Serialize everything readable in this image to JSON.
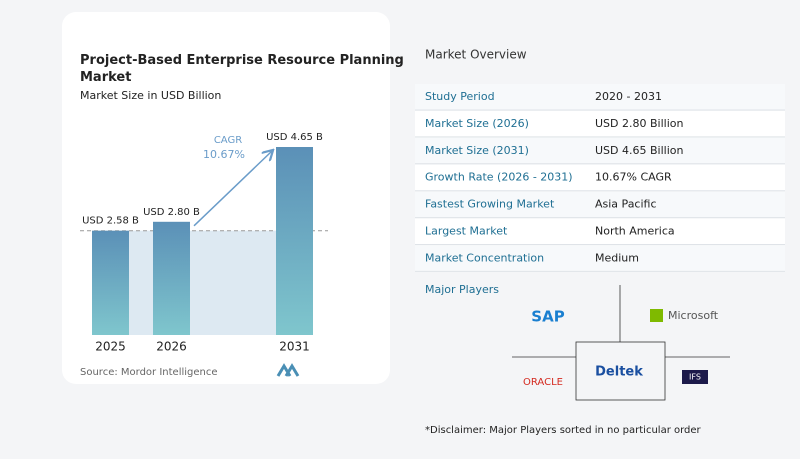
{
  "chart_data": {
    "type": "bar",
    "title": "Project-Based Enterprise Resource Planning Market",
    "subtitle": "Market Size in USD Billion",
    "categories": [
      "2025",
      "2026",
      "2031"
    ],
    "values": [
      2.58,
      2.8,
      4.65
    ],
    "value_labels": [
      "USD 2.58 B",
      "USD 2.80 B",
      "USD 4.65 B"
    ],
    "color": "#6aa6c3",
    "annotations": {
      "cagr_label": "CAGR",
      "cagr_value": "10.67%"
    },
    "source": "Source: Mordor Intelligence"
  },
  "market_overview": {
    "title": "Market Overview",
    "rows": [
      [
        "Study Period",
        "2020 - 2031"
      ],
      [
        "Market Size (2026)",
        "USD 2.80 Billion"
      ],
      [
        "Market Size (2031)",
        "USD 4.65 Billion"
      ],
      [
        "Growth Rate (2026 - 2031)",
        "10.67% CAGR"
      ],
      [
        "Fastest Growing Market",
        "Asia Pacific"
      ],
      [
        "Largest Market",
        "North America"
      ],
      [
        "Market Concentration",
        "Medium"
      ]
    ]
  },
  "major_players": {
    "title": "Major Players",
    "logos": [
      "SAP",
      "Microsoft",
      "Deltek",
      "ORACLE",
      "IFS"
    ],
    "disclaimer": "*Disclaimer: Major Players sorted in no particular order"
  }
}
